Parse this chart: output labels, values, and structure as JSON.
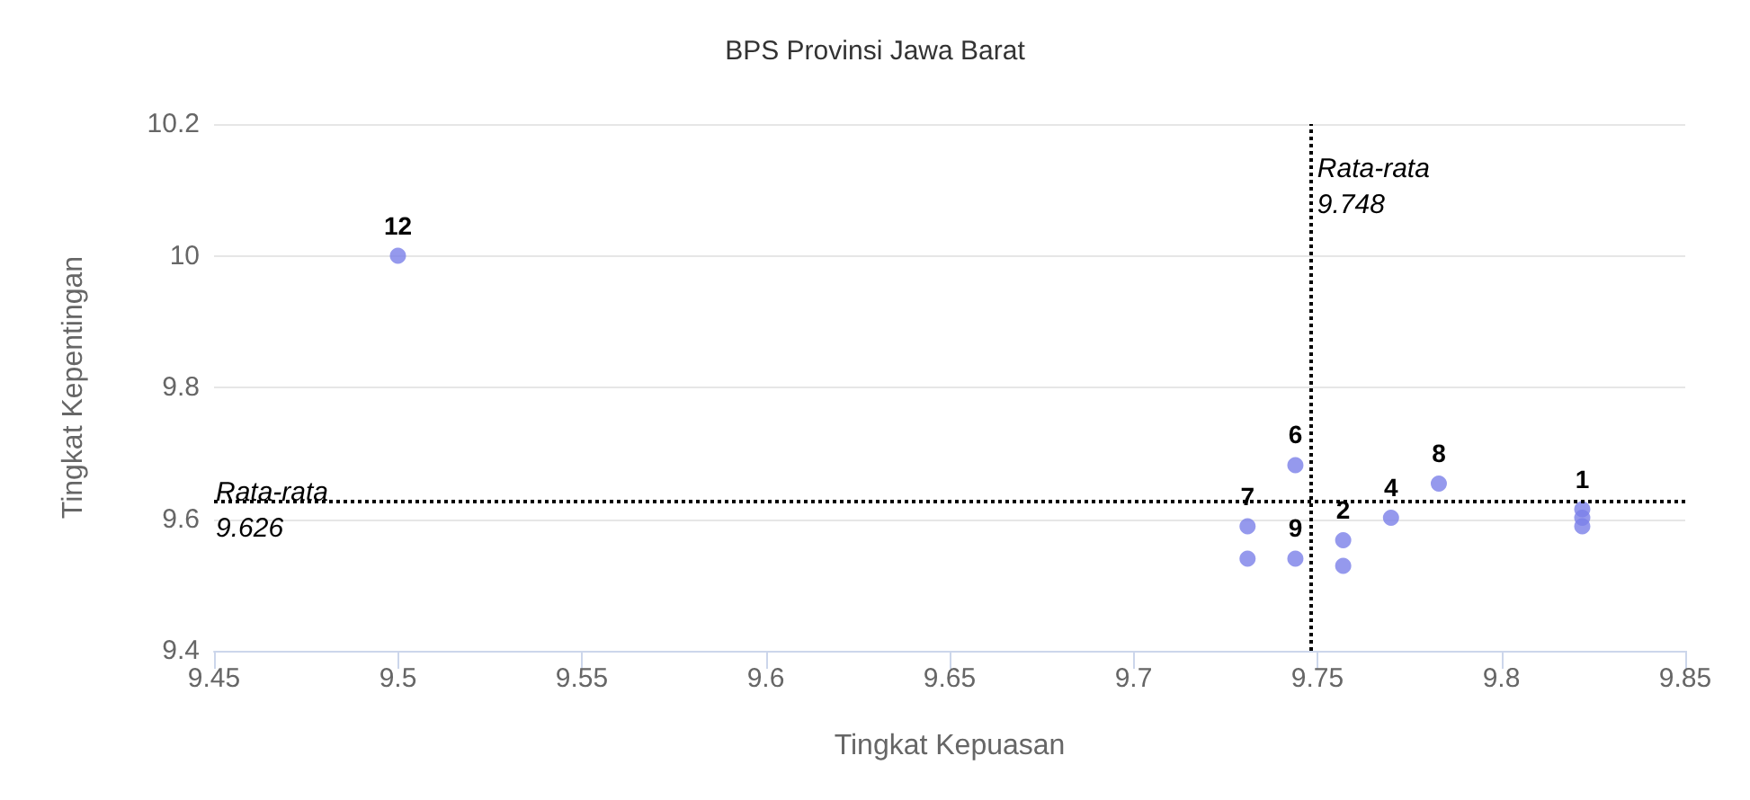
{
  "chart_data": {
    "type": "scatter",
    "title": "BPS Provinsi Jawa Barat",
    "xlabel": "Tingkat Kepuasan",
    "ylabel": "Tingkat Kepentingan",
    "x": [
      9.5,
      9.744,
      9.731,
      9.731,
      9.744,
      9.757,
      9.757,
      9.77,
      9.783,
      9.822,
      9.822,
      9.822
    ],
    "series": [
      {
        "color": "#7b7fe8",
        "values": [
          10.0,
          9.682,
          9.589,
          9.54,
          9.54,
          9.568,
          9.529,
          9.602,
          9.654,
          9.615,
          9.602,
          9.589
        ]
      }
    ],
    "annotations": [
      {
        "text": "12",
        "x": 9.5,
        "y": 10.0
      },
      {
        "text": "6",
        "x": 9.744,
        "y": 9.682
      },
      {
        "text": "7",
        "x": 9.731,
        "y": 9.589
      },
      {
        "text": "9",
        "x": 9.744,
        "y": 9.54
      },
      {
        "text": "2",
        "x": 9.757,
        "y": 9.568
      },
      {
        "text": "4",
        "x": 9.77,
        "y": 9.602
      },
      {
        "text": "8",
        "x": 9.783,
        "y": 9.654
      },
      {
        "text": "1",
        "x": 9.822,
        "y": 9.615
      }
    ],
    "xlim": [
      9.45,
      9.85
    ],
    "xticks": [
      9.45,
      9.5,
      9.55,
      9.6,
      9.65,
      9.7,
      9.75,
      9.8,
      9.85
    ],
    "ylim": [
      9.4,
      10.2
    ],
    "yticks": [
      9.4,
      9.6,
      9.8,
      10,
      10.2
    ],
    "grid": "y",
    "marker": "circle",
    "ref_lines": [
      {
        "axis": "x",
        "value": 9.748,
        "label": "Rata-rata\n9.748",
        "color": "#000000",
        "line_style": "dotted"
      },
      {
        "axis": "y",
        "value": 9.626,
        "label": "Rata-rata\n9.626",
        "color": "#000000",
        "line_style": "dotted"
      }
    ]
  }
}
